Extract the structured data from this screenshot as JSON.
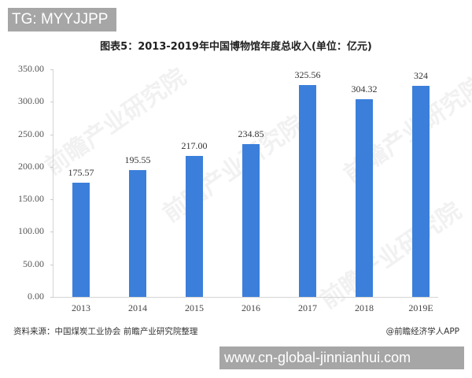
{
  "overlay": {
    "tg_badge": "TG: MYYJJPP",
    "url_badge": "www.cn-global-jinnianhui.com"
  },
  "header": {
    "title": "图表5：2013-2019年中国博物馆年度总收入(单位：亿元)"
  },
  "footer": {
    "source": "资料来源：中国煤炭工业协会 前瞻产业研究院整理",
    "credit": "@前瞻经济学人APP"
  },
  "watermark": {
    "text": "前瞻产业研究院"
  },
  "colors": {
    "bar": "#3b7fdb",
    "badge_bg": "#a6a6a6"
  },
  "yaxis": {
    "ticks": [
      "350.00",
      "300.00",
      "250.00",
      "200.00",
      "150.00",
      "100.00",
      "50.00",
      "0.00"
    ]
  },
  "bars": [
    {
      "category": "2013",
      "value_label": "175.57"
    },
    {
      "category": "2014",
      "value_label": "195.55"
    },
    {
      "category": "2015",
      "value_label": "217.00"
    },
    {
      "category": "2016",
      "value_label": "234.85"
    },
    {
      "category": "2017",
      "value_label": "325.56"
    },
    {
      "category": "2018",
      "value_label": "304.32"
    },
    {
      "category": "2019E",
      "value_label": "324"
    }
  ],
  "chart_data": {
    "type": "bar",
    "title": "图表5：2013-2019年中国博物馆年度总收入(单位：亿元)",
    "categories": [
      "2013",
      "2014",
      "2015",
      "2016",
      "2017",
      "2018",
      "2019E"
    ],
    "values": [
      175.57,
      195.55,
      217.0,
      234.85,
      325.56,
      304.32,
      324
    ],
    "xlabel": "",
    "ylabel": "",
    "unit": "亿元",
    "ylim": [
      0,
      350
    ],
    "yticks": [
      0,
      50,
      100,
      150,
      200,
      250,
      300,
      350
    ],
    "grid": false,
    "legend": null,
    "data_labels": true,
    "source": "资料来源：中国煤炭工业协会 前瞻产业研究院整理"
  }
}
